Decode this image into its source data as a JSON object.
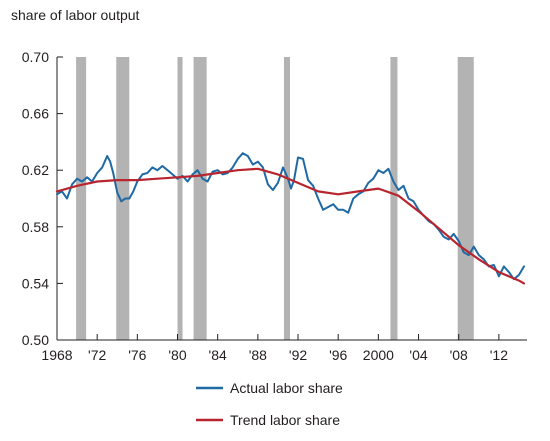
{
  "chart_data": {
    "type": "line",
    "title": "",
    "ylabel": "share of labor output",
    "xlabel": "",
    "xlim": [
      1968,
      2014.8
    ],
    "ylim": [
      0.5,
      0.7
    ],
    "yticks": [
      0.5,
      0.54,
      0.58,
      0.62,
      0.66,
      0.7
    ],
    "ytick_labels": [
      "0.50",
      "0.54",
      "0.58",
      "0.62",
      "0.66",
      "0.70"
    ],
    "xticks": [
      1968,
      1972,
      1976,
      1980,
      1984,
      1988,
      1992,
      1996,
      2000,
      2004,
      2008,
      2012
    ],
    "xtick_labels": [
      "1968",
      "'72",
      "'76",
      "'80",
      "'84",
      "'88",
      "'92",
      "'96",
      "2000",
      "'04",
      "'08",
      "'12"
    ],
    "grid": false,
    "legend_position": "bottom-center",
    "recessions": [
      [
        1969.9,
        1970.9
      ],
      [
        1973.9,
        1975.2
      ],
      [
        1980.0,
        1980.5
      ],
      [
        1981.6,
        1982.9
      ],
      [
        1990.6,
        1991.2
      ],
      [
        2001.2,
        2001.9
      ],
      [
        2007.9,
        2009.5
      ]
    ],
    "series": [
      {
        "name": "Actual labor share",
        "color": "#1f6aa5",
        "x": [
          1968.0,
          1968.5,
          1969.0,
          1969.5,
          1970.0,
          1970.5,
          1971.0,
          1971.5,
          1972.0,
          1972.5,
          1973.0,
          1973.3,
          1973.6,
          1974.0,
          1974.4,
          1974.8,
          1975.2,
          1975.6,
          1976.0,
          1976.5,
          1977.0,
          1977.5,
          1978.0,
          1978.5,
          1979.0,
          1979.5,
          1980.0,
          1980.5,
          1981.0,
          1981.5,
          1982.0,
          1982.5,
          1983.0,
          1983.5,
          1984.0,
          1984.5,
          1985.0,
          1985.5,
          1986.0,
          1986.5,
          1987.0,
          1987.5,
          1988.0,
          1988.5,
          1989.0,
          1989.5,
          1990.0,
          1990.5,
          1991.0,
          1991.3,
          1991.6,
          1992.0,
          1992.5,
          1993.0,
          1993.5,
          1994.0,
          1994.5,
          1995.0,
          1995.5,
          1996.0,
          1996.5,
          1997.0,
          1997.5,
          1998.0,
          1998.5,
          1999.0,
          1999.5,
          2000.0,
          2000.5,
          2001.0,
          2001.5,
          2002.0,
          2002.5,
          2003.0,
          2003.5,
          2004.0,
          2004.5,
          2005.0,
          2005.5,
          2006.0,
          2006.5,
          2007.0,
          2007.5,
          2008.0,
          2008.5,
          2009.0,
          2009.5,
          2010.0,
          2010.5,
          2011.0,
          2011.5,
          2012.0,
          2012.5,
          2013.0,
          2013.5,
          2014.0,
          2014.5
        ],
        "values": [
          0.603,
          0.605,
          0.6,
          0.61,
          0.614,
          0.612,
          0.615,
          0.612,
          0.618,
          0.622,
          0.63,
          0.626,
          0.618,
          0.604,
          0.598,
          0.6,
          0.6,
          0.605,
          0.612,
          0.617,
          0.618,
          0.622,
          0.62,
          0.623,
          0.62,
          0.617,
          0.614,
          0.616,
          0.612,
          0.617,
          0.62,
          0.614,
          0.612,
          0.619,
          0.62,
          0.617,
          0.618,
          0.622,
          0.628,
          0.632,
          0.63,
          0.624,
          0.626,
          0.622,
          0.61,
          0.606,
          0.611,
          0.622,
          0.614,
          0.607,
          0.613,
          0.629,
          0.628,
          0.613,
          0.609,
          0.6,
          0.592,
          0.594,
          0.596,
          0.592,
          0.592,
          0.59,
          0.6,
          0.603,
          0.605,
          0.611,
          0.614,
          0.62,
          0.618,
          0.621,
          0.612,
          0.606,
          0.609,
          0.6,
          0.598,
          0.592,
          0.588,
          0.584,
          0.582,
          0.578,
          0.573,
          0.571,
          0.575,
          0.57,
          0.562,
          0.56,
          0.566,
          0.56,
          0.557,
          0.552,
          0.553,
          0.545,
          0.552,
          0.548,
          0.543,
          0.546,
          0.552
        ]
      },
      {
        "name": "Trend labor share",
        "color": "#b8252e",
        "x": [
          1968,
          1970,
          1972,
          1974,
          1976,
          1978,
          1980,
          1982,
          1984,
          1986,
          1988,
          1990,
          1992,
          1994,
          1996,
          1998,
          2000,
          2002,
          2004,
          2006,
          2008,
          2010,
          2012,
          2014,
          2014.5
        ],
        "values": [
          0.605,
          0.609,
          0.612,
          0.613,
          0.613,
          0.614,
          0.615,
          0.616,
          0.618,
          0.62,
          0.621,
          0.617,
          0.611,
          0.605,
          0.603,
          0.605,
          0.607,
          0.602,
          0.591,
          0.579,
          0.567,
          0.557,
          0.548,
          0.542,
          0.54
        ]
      }
    ]
  }
}
